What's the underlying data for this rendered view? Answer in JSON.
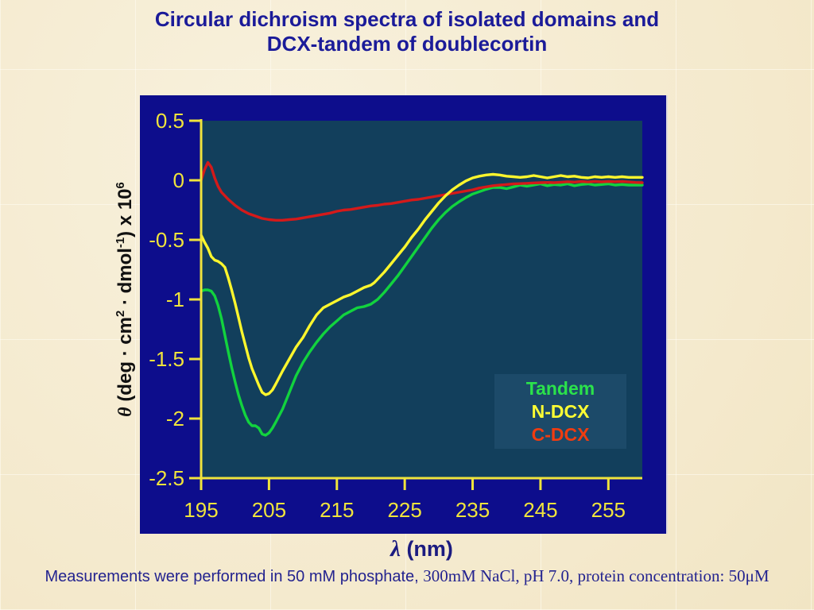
{
  "slide": {
    "title_line1": "Circular dichroism spectra of isolated domains and",
    "title_line2": "DCX-tandem of doublecortin",
    "footer_sans": "Measurements were performed in 50 mM phosphate, ",
    "footer_serif": "300mM NaCl, pH 7.0, protein concentration: 50μM"
  },
  "colors": {
    "slide_bg": "#f5ebcf",
    "chart_bg": "#0d0d8c",
    "plot_bg": "#123f5c",
    "axis": "#f0e43c",
    "tick_label": "#f0e43c",
    "title_color": "#1b1b99",
    "footer_color": "#23238f",
    "xlabel_color": "#1b1b80",
    "ylabel_color": "#111111",
    "legend_bg": "#1c4a69"
  },
  "chart_data": {
    "type": "line",
    "xlabel_lambda": "λ",
    "xlabel_rest": " (nm)",
    "ylabel_text": "θ (deg · cm2 · dmol-1) x 106",
    "ylabel_segments": [
      {
        "text": "θ",
        "italic": true
      },
      {
        "text": " (deg · cm"
      },
      {
        "text": "2",
        "sup": true
      },
      {
        "text": " · dmol"
      },
      {
        "text": "-1",
        "sup": true
      },
      {
        "text": ") x 10"
      },
      {
        "text": "6",
        "sup": true
      }
    ],
    "xlim": [
      195,
      260
    ],
    "ylim": [
      -2.5,
      0.5
    ],
    "grid": false,
    "x_ticks": [
      {
        "v": 195,
        "label": "195"
      },
      {
        "v": 205,
        "label": "205"
      },
      {
        "v": 215,
        "label": "215"
      },
      {
        "v": 225,
        "label": "225"
      },
      {
        "v": 235,
        "label": "235"
      },
      {
        "v": 245,
        "label": "245"
      },
      {
        "v": 255,
        "label": "255"
      }
    ],
    "y_ticks": [
      {
        "v": 0.5,
        "label": "0.5"
      },
      {
        "v": 0,
        "label": "0"
      },
      {
        "v": -0.5,
        "label": "-0.5"
      },
      {
        "v": -1,
        "label": "-1"
      },
      {
        "v": -1.5,
        "label": "-1.5"
      },
      {
        "v": -2,
        "label": "-2"
      },
      {
        "v": -2.5,
        "label": "-2.5"
      }
    ],
    "legend": {
      "position": "inside-bottom-right",
      "entries": [
        {
          "label": "Tandem",
          "color": "#2be24b"
        },
        {
          "label": "N-DCX",
          "color": "#fdfd33"
        },
        {
          "label": "C-DCX",
          "color": "#f03c10"
        }
      ]
    },
    "series": [
      {
        "name": "Tandem",
        "color": "#12d33e",
        "points": [
          [
            195,
            -0.93
          ],
          [
            195.5,
            -0.92
          ],
          [
            196,
            -0.92
          ],
          [
            196.5,
            -0.93
          ],
          [
            197,
            -0.97
          ],
          [
            197.5,
            -1.05
          ],
          [
            198,
            -1.16
          ],
          [
            198.5,
            -1.3
          ],
          [
            199,
            -1.44
          ],
          [
            199.5,
            -1.57
          ],
          [
            200,
            -1.69
          ],
          [
            200.5,
            -1.8
          ],
          [
            201,
            -1.89
          ],
          [
            201.5,
            -1.97
          ],
          [
            202,
            -2.03
          ],
          [
            202.5,
            -2.06
          ],
          [
            203,
            -2.06
          ],
          [
            203.5,
            -2.08
          ],
          [
            204,
            -2.13
          ],
          [
            204.5,
            -2.14
          ],
          [
            205,
            -2.12
          ],
          [
            205.5,
            -2.08
          ],
          [
            206,
            -2.03
          ],
          [
            207,
            -1.92
          ],
          [
            208,
            -1.78
          ],
          [
            209,
            -1.64
          ],
          [
            210,
            -1.53
          ],
          [
            211,
            -1.44
          ],
          [
            212,
            -1.36
          ],
          [
            213,
            -1.29
          ],
          [
            214,
            -1.23
          ],
          [
            215,
            -1.18
          ],
          [
            216,
            -1.13
          ],
          [
            217,
            -1.1
          ],
          [
            218,
            -1.07
          ],
          [
            219,
            -1.06
          ],
          [
            220,
            -1.04
          ],
          [
            221,
            -1.0
          ],
          [
            222,
            -0.94
          ],
          [
            223,
            -0.87
          ],
          [
            224,
            -0.8
          ],
          [
            225,
            -0.72
          ],
          [
            226,
            -0.64
          ],
          [
            227,
            -0.56
          ],
          [
            228,
            -0.48
          ],
          [
            229,
            -0.4
          ],
          [
            230,
            -0.33
          ],
          [
            231,
            -0.27
          ],
          [
            232,
            -0.22
          ],
          [
            233,
            -0.18
          ],
          [
            234,
            -0.145
          ],
          [
            235,
            -0.115
          ],
          [
            236,
            -0.095
          ],
          [
            237,
            -0.075
          ],
          [
            238,
            -0.06
          ],
          [
            239,
            -0.06
          ],
          [
            240,
            -0.07
          ],
          [
            241,
            -0.055
          ],
          [
            242,
            -0.04
          ],
          [
            243,
            -0.05
          ],
          [
            244,
            -0.04
          ],
          [
            245,
            -0.03
          ],
          [
            246,
            -0.045
          ],
          [
            247,
            -0.035
          ],
          [
            248,
            -0.04
          ],
          [
            249,
            -0.03
          ],
          [
            250,
            -0.045
          ],
          [
            251,
            -0.035
          ],
          [
            252,
            -0.03
          ],
          [
            253,
            -0.04
          ],
          [
            254,
            -0.035
          ],
          [
            255,
            -0.03
          ],
          [
            256,
            -0.04
          ],
          [
            257,
            -0.035
          ],
          [
            258,
            -0.04
          ],
          [
            259,
            -0.04
          ],
          [
            260,
            -0.04
          ]
        ]
      },
      {
        "name": "C-DCX",
        "color": "#d41a1a",
        "points": [
          [
            195,
            0.0
          ],
          [
            195.5,
            0.09
          ],
          [
            196,
            0.15
          ],
          [
            196.5,
            0.11
          ],
          [
            197,
            0.02
          ],
          [
            197.5,
            -0.05
          ],
          [
            198,
            -0.1
          ],
          [
            199,
            -0.16
          ],
          [
            200,
            -0.21
          ],
          [
            201,
            -0.25
          ],
          [
            202,
            -0.28
          ],
          [
            203,
            -0.3
          ],
          [
            204,
            -0.32
          ],
          [
            205,
            -0.33
          ],
          [
            206,
            -0.335
          ],
          [
            207,
            -0.335
          ],
          [
            208,
            -0.33
          ],
          [
            209,
            -0.325
          ],
          [
            210,
            -0.315
          ],
          [
            211,
            -0.305
          ],
          [
            212,
            -0.295
          ],
          [
            213,
            -0.285
          ],
          [
            214,
            -0.275
          ],
          [
            215,
            -0.26
          ],
          [
            216,
            -0.25
          ],
          [
            217,
            -0.245
          ],
          [
            218,
            -0.235
          ],
          [
            219,
            -0.225
          ],
          [
            220,
            -0.215
          ],
          [
            221,
            -0.21
          ],
          [
            222,
            -0.2
          ],
          [
            223,
            -0.195
          ],
          [
            224,
            -0.185
          ],
          [
            225,
            -0.175
          ],
          [
            226,
            -0.165
          ],
          [
            227,
            -0.16
          ],
          [
            228,
            -0.15
          ],
          [
            229,
            -0.14
          ],
          [
            230,
            -0.13
          ],
          [
            231,
            -0.12
          ],
          [
            232,
            -0.11
          ],
          [
            233,
            -0.1
          ],
          [
            234,
            -0.09
          ],
          [
            235,
            -0.08
          ],
          [
            236,
            -0.065
          ],
          [
            237,
            -0.055
          ],
          [
            238,
            -0.045
          ],
          [
            239,
            -0.04
          ],
          [
            240,
            -0.035
          ],
          [
            241,
            -0.03
          ],
          [
            242,
            -0.028
          ],
          [
            243,
            -0.025
          ],
          [
            244,
            -0.022
          ],
          [
            245,
            -0.02
          ],
          [
            246,
            -0.018
          ],
          [
            247,
            -0.02
          ],
          [
            248,
            -0.016
          ],
          [
            249,
            -0.012
          ],
          [
            250,
            -0.015
          ],
          [
            251,
            -0.01
          ],
          [
            252,
            -0.014
          ],
          [
            253,
            -0.01
          ],
          [
            254,
            -0.013
          ],
          [
            255,
            -0.01
          ],
          [
            256,
            -0.012
          ],
          [
            257,
            -0.01
          ],
          [
            258,
            -0.014
          ],
          [
            259,
            -0.018
          ],
          [
            260,
            -0.02
          ]
        ]
      },
      {
        "name": "N-DCX",
        "color": "#fdf62d",
        "points": [
          [
            195,
            -0.46
          ],
          [
            195.5,
            -0.52
          ],
          [
            196,
            -0.57
          ],
          [
            196.5,
            -0.64
          ],
          [
            197,
            -0.67
          ],
          [
            197.5,
            -0.68
          ],
          [
            198,
            -0.7
          ],
          [
            198.5,
            -0.73
          ],
          [
            199,
            -0.82
          ],
          [
            199.5,
            -0.92
          ],
          [
            200,
            -1.03
          ],
          [
            200.5,
            -1.15
          ],
          [
            201,
            -1.27
          ],
          [
            201.5,
            -1.38
          ],
          [
            202,
            -1.49
          ],
          [
            202.5,
            -1.58
          ],
          [
            203,
            -1.65
          ],
          [
            203.5,
            -1.72
          ],
          [
            204,
            -1.78
          ],
          [
            204.5,
            -1.8
          ],
          [
            205,
            -1.79
          ],
          [
            205.5,
            -1.76
          ],
          [
            206,
            -1.71
          ],
          [
            207,
            -1.6
          ],
          [
            208,
            -1.5
          ],
          [
            209,
            -1.4
          ],
          [
            210,
            -1.32
          ],
          [
            211,
            -1.22
          ],
          [
            212,
            -1.13
          ],
          [
            213,
            -1.07
          ],
          [
            214,
            -1.04
          ],
          [
            215,
            -1.01
          ],
          [
            216,
            -0.98
          ],
          [
            217,
            -0.96
          ],
          [
            218,
            -0.93
          ],
          [
            219,
            -0.9
          ],
          [
            220,
            -0.88
          ],
          [
            220.5,
            -0.86
          ],
          [
            221,
            -0.83
          ],
          [
            222,
            -0.77
          ],
          [
            223,
            -0.7
          ],
          [
            224,
            -0.63
          ],
          [
            225,
            -0.56
          ],
          [
            226,
            -0.48
          ],
          [
            227,
            -0.41
          ],
          [
            228,
            -0.33
          ],
          [
            229,
            -0.26
          ],
          [
            230,
            -0.19
          ],
          [
            231,
            -0.13
          ],
          [
            232,
            -0.08
          ],
          [
            233,
            -0.04
          ],
          [
            234,
            -0.005
          ],
          [
            235,
            0.02
          ],
          [
            236,
            0.035
          ],
          [
            237,
            0.045
          ],
          [
            238,
            0.05
          ],
          [
            239,
            0.045
          ],
          [
            240,
            0.035
          ],
          [
            241,
            0.03
          ],
          [
            242,
            0.025
          ],
          [
            243,
            0.03
          ],
          [
            244,
            0.04
          ],
          [
            245,
            0.03
          ],
          [
            246,
            0.02
          ],
          [
            247,
            0.03
          ],
          [
            248,
            0.04
          ],
          [
            249,
            0.03
          ],
          [
            250,
            0.035
          ],
          [
            251,
            0.025
          ],
          [
            252,
            0.02
          ],
          [
            253,
            0.03
          ],
          [
            254,
            0.025
          ],
          [
            255,
            0.03
          ],
          [
            256,
            0.025
          ],
          [
            257,
            0.03
          ],
          [
            258,
            0.025
          ],
          [
            259,
            0.025
          ],
          [
            260,
            0.025
          ]
        ]
      }
    ]
  }
}
